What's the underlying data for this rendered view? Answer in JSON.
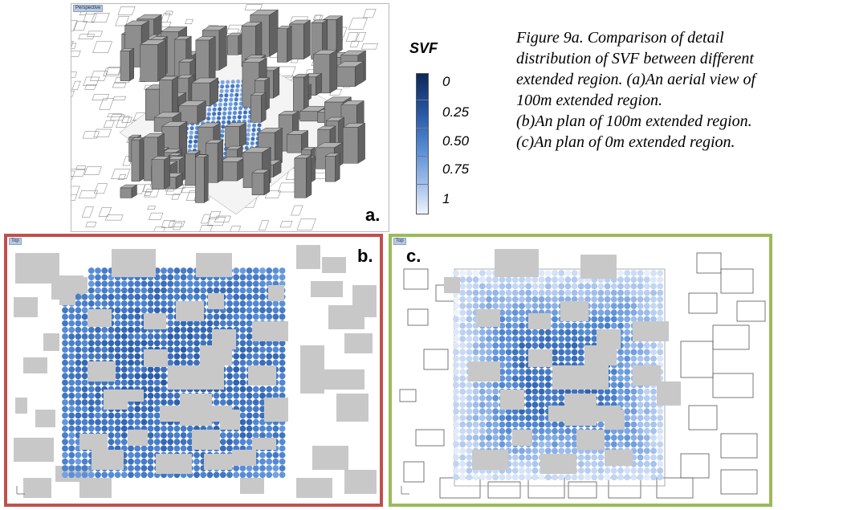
{
  "panels": {
    "a": {
      "viewport_tag": "Perspective",
      "label": "a."
    },
    "b": {
      "viewport_tag": "Top",
      "label": "b.",
      "frame_color": "#c0504d"
    },
    "c": {
      "viewport_tag": "Top",
      "label": "c.",
      "frame_color": "#9bbb59"
    }
  },
  "legend": {
    "title": "SVF",
    "ticks": [
      "0",
      "0.25",
      "0.50",
      "0.75",
      "1"
    ],
    "color_dark": "#0d2759",
    "color_light": "#eef3fb"
  },
  "caption": {
    "lines": [
      "Figure 9a. Comparison of detail",
      "distribution of SVF between different",
      "extended region. (a)An aerial view of",
      "100m extended region.",
      "(b)An plan of 100m extended region.",
      "(c)An plan of 0m extended region."
    ]
  },
  "colors": {
    "building_fill": "#c8c8c8",
    "building_3d_top": "#9a9a9a",
    "building_3d_side": "#6d6d6d"
  }
}
